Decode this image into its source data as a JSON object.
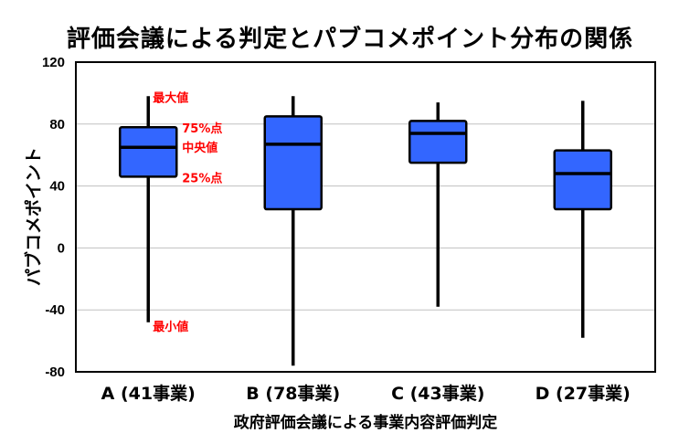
{
  "chart_data": {
    "type": "boxplot",
    "title": "評価会議による判定とパブコメポイント分布の関係",
    "xlabel": "政府評価会議による事業内容評価判定",
    "ylabel": "パブコメポイント",
    "ylim": [
      -80,
      120
    ],
    "yticks": [
      -80,
      -40,
      0,
      40,
      80,
      120
    ],
    "grid": true,
    "box_color": "#3366FF",
    "annotation_color": "#FF0000",
    "categories": [
      "A (41事業)",
      "B (78事業)",
      "C (43事業)",
      "D (27事業)"
    ],
    "boxes": [
      {
        "min": -48,
        "q1": 46,
        "median": 65,
        "q3": 78,
        "max": 98
      },
      {
        "min": -76,
        "q1": 25,
        "median": 67,
        "q3": 85,
        "max": 98
      },
      {
        "min": -38,
        "q1": 55,
        "median": 74,
        "q3": 82,
        "max": 94
      },
      {
        "min": -58,
        "q1": 25,
        "median": 48,
        "q3": 63,
        "max": 95
      }
    ],
    "annotations": {
      "max": "最大値",
      "q3": "75%点",
      "median": "中央値",
      "q1": "25%点",
      "min": "最小値"
    }
  }
}
